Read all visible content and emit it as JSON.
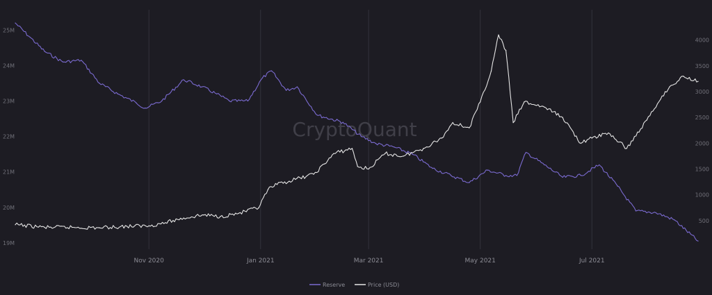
{
  "watermark": "CryptoQuant",
  "colors": {
    "background": "#1d1c23",
    "reserve": "#7b6bd1",
    "price": "#e6e6e6",
    "grid": "#33323b",
    "tick_text": "#8c8c95"
  },
  "chart_data": {
    "type": "line",
    "title": "",
    "grid": "vertical lines only",
    "legend": "bottom-center",
    "x_ticks": [
      {
        "date": "2020-11-01",
        "label": "Nov 2020"
      },
      {
        "date": "2021-01-01",
        "label": "Jan 2021"
      },
      {
        "date": "2021-03-01",
        "label": "Mar 2021"
      },
      {
        "date": "2021-05-01",
        "label": "May 2021"
      },
      {
        "date": "2021-07-01",
        "label": "Jul 2021"
      }
    ],
    "x_range": [
      "2020-08-20",
      "2021-08-28"
    ],
    "y_left": {
      "label": "",
      "ylim": [
        18.9,
        25.3
      ],
      "ticks": [
        "19M",
        "20M",
        "21M",
        "22M",
        "23M",
        "24M",
        "25M"
      ],
      "tick_values": [
        19,
        20,
        21,
        22,
        23,
        24,
        25
      ]
    },
    "y_right": {
      "label": "",
      "ylim": [
        0,
        4400
      ],
      "ticks": [
        "500",
        "1000",
        "1500",
        "2000",
        "2500",
        "3000",
        "3500",
        "4000"
      ],
      "tick_values": [
        500,
        1000,
        1500,
        2000,
        2500,
        3000,
        3500,
        4000
      ]
    },
    "series": [
      {
        "name": "Reserve",
        "axis": "left",
        "x": [
          "2020-08-20",
          "2020-08-28",
          "2020-09-05",
          "2020-09-15",
          "2020-09-25",
          "2020-10-05",
          "2020-10-15",
          "2020-10-25",
          "2020-10-30",
          "2020-11-08",
          "2020-11-20",
          "2020-11-30",
          "2020-12-08",
          "2020-12-15",
          "2020-12-25",
          "2021-01-02",
          "2021-01-07",
          "2021-01-15",
          "2021-01-21",
          "2021-02-01",
          "2021-02-15",
          "2021-02-25",
          "2021-03-05",
          "2021-03-15",
          "2021-03-25",
          "2021-04-05",
          "2021-04-15",
          "2021-04-25",
          "2021-05-05",
          "2021-05-15",
          "2021-05-21",
          "2021-05-26",
          "2021-06-05",
          "2021-06-15",
          "2021-06-25",
          "2021-07-05",
          "2021-07-15",
          "2021-07-25",
          "2021-08-05",
          "2021-08-15",
          "2021-08-28"
        ],
        "values": [
          25.2,
          24.8,
          24.4,
          24.1,
          24.15,
          23.5,
          23.2,
          22.95,
          22.8,
          23.0,
          23.6,
          23.4,
          23.2,
          23.0,
          23.0,
          23.65,
          23.85,
          23.3,
          23.4,
          22.6,
          22.4,
          22.0,
          21.8,
          21.7,
          21.5,
          21.1,
          20.9,
          20.7,
          21.05,
          20.9,
          20.9,
          21.55,
          21.2,
          20.85,
          20.9,
          21.2,
          20.6,
          19.9,
          19.85,
          19.65,
          19.05
        ]
      },
      {
        "name": "Price (USD)",
        "axis": "right",
        "x": [
          "2020-08-20",
          "2020-09-05",
          "2020-09-20",
          "2020-10-05",
          "2020-10-20",
          "2020-11-01",
          "2020-11-10",
          "2020-11-20",
          "2020-12-01",
          "2020-12-10",
          "2020-12-20",
          "2020-12-31",
          "2021-01-05",
          "2021-01-10",
          "2021-01-20",
          "2021-01-30",
          "2021-02-05",
          "2021-02-10",
          "2021-02-20",
          "2021-02-23",
          "2021-03-01",
          "2021-03-10",
          "2021-03-20",
          "2021-03-31",
          "2021-04-10",
          "2021-04-16",
          "2021-04-25",
          "2021-05-01",
          "2021-05-07",
          "2021-05-11",
          "2021-05-15",
          "2021-05-19",
          "2021-05-25",
          "2021-06-05",
          "2021-06-15",
          "2021-06-25",
          "2021-07-01",
          "2021-07-10",
          "2021-07-20",
          "2021-07-31",
          "2021-08-10",
          "2021-08-20",
          "2021-08-28"
        ],
        "values": [
          420,
          370,
          370,
          360,
          390,
          400,
          460,
          550,
          610,
          580,
          640,
          750,
          1100,
          1200,
          1300,
          1400,
          1600,
          1800,
          1900,
          1550,
          1500,
          1800,
          1750,
          1900,
          2100,
          2400,
          2300,
          2800,
          3400,
          4100,
          3800,
          2400,
          2800,
          2700,
          2500,
          2000,
          2100,
          2200,
          1900,
          2450,
          3000,
          3300,
          3200
        ]
      }
    ]
  }
}
